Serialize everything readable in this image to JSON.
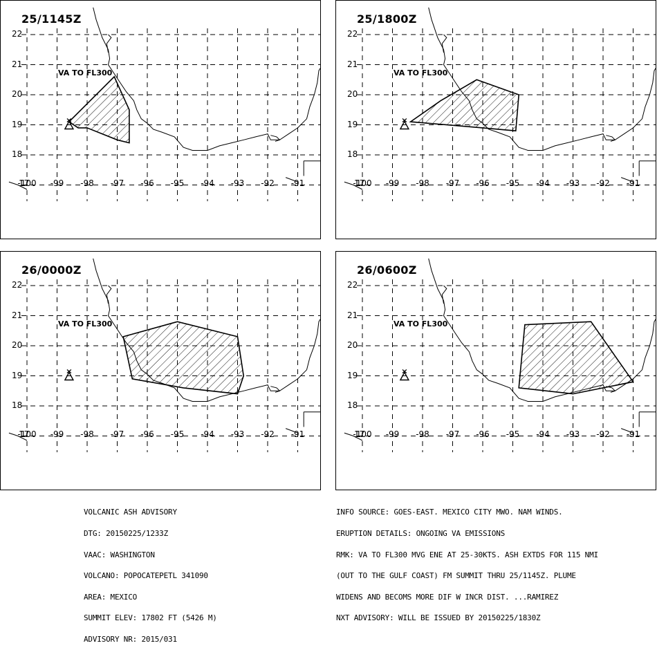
{
  "panels": [
    {
      "title": "25/1145Z",
      "label": "VA TO FL300",
      "polygon": [
        [
          -98.6,
          19.1
        ],
        [
          -97.1,
          20.6
        ],
        [
          -96.6,
          19.5
        ],
        [
          -96.6,
          18.4
        ],
        [
          -97.0,
          18.5
        ],
        [
          -98.0,
          18.9
        ],
        [
          -98.3,
          18.9
        ],
        [
          -98.6,
          19.1
        ]
      ]
    },
    {
      "title": "25/1800Z",
      "label": "VA TO FL300",
      "polygon": [
        [
          -98.4,
          19.1
        ],
        [
          -97.4,
          19.8
        ],
        [
          -96.2,
          20.5
        ],
        [
          -94.8,
          20.0
        ],
        [
          -94.9,
          18.8
        ],
        [
          -96.0,
          18.9
        ],
        [
          -98.4,
          19.1
        ]
      ]
    },
    {
      "title": "26/0000Z",
      "label": "VA TO FL300",
      "polygon": [
        [
          -96.8,
          20.3
        ],
        [
          -95.0,
          20.8
        ],
        [
          -93.0,
          20.3
        ],
        [
          -92.8,
          19.0
        ],
        [
          -93.0,
          18.4
        ],
        [
          -94.8,
          18.6
        ],
        [
          -96.5,
          18.9
        ],
        [
          -96.8,
          20.3
        ]
      ]
    },
    {
      "title": "26/0600Z",
      "label": "VA TO FL300",
      "polygon": [
        [
          -94.6,
          20.7
        ],
        [
          -92.4,
          20.8
        ],
        [
          -91.0,
          18.8
        ],
        [
          -93.0,
          18.4
        ],
        [
          -94.8,
          18.6
        ],
        [
          -94.6,
          20.7
        ]
      ]
    }
  ],
  "lat_ticks": [
    22,
    21,
    20,
    19,
    18,
    17
  ],
  "lon_ticks": [
    -100,
    -99,
    -98,
    -97,
    -96,
    -95,
    -94,
    -93,
    -92,
    -91
  ],
  "volcano": {
    "lon": -98.6,
    "lat": 19.0,
    "symbol": "triangle"
  },
  "advisory_left": [
    "VOLCANIC ASH ADVISORY",
    "DTG: 20150225/1233Z",
    "VAAC: WASHINGTON",
    "VOLCANO: POPOCATEPETL 341090",
    "AREA: MEXICO",
    "SUMMIT ELEV: 17802 FT (5426 M)",
    "ADVISORY NR: 2015/031"
  ],
  "advisory_right": [
    "INFO SOURCE: GOES-EAST. MEXICO CITY MWO. NAM WINDS.",
    "ERUPTION DETAILS: ONGOING VA EMISSIONS",
    "RMK: VA TO FL300 MVG ENE AT 25-30KTS. ASH EXTDS FOR 115 NMI",
    "(OUT TO THE GULF COAST) FM SUMMIT THRU 25/1145Z. PLUME",
    "WIDENS AND BECOMS MORE DIF W INCR DIST. ...RAMIREZ",
    "NXT ADVISORY: WILL BE ISSUED BY 20150225/1830Z"
  ],
  "colors": {
    "line": "#000000",
    "background": "#ffffff"
  }
}
